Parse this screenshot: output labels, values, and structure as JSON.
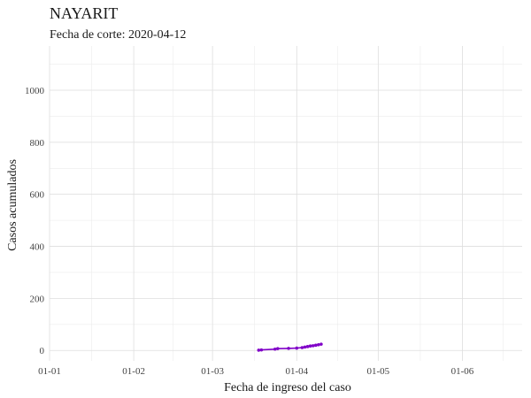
{
  "chart_data": {
    "type": "line",
    "title": "NAYARIT",
    "subtitle": "Fecha de corte: 2020-04-12",
    "xlabel": "Fecha de ingreso del caso",
    "ylabel": "Casos acumulados",
    "x_ticks": [
      "01-01",
      "01-02",
      "01-03",
      "01-04",
      "01-05",
      "01-06"
    ],
    "x_tick_dates": [
      "2020-01-01",
      "2020-02-01",
      "2020-03-01",
      "2020-04-01",
      "2020-05-01",
      "2020-06-01"
    ],
    "xlim": [
      "2020-01-01",
      "2020-06-23"
    ],
    "y_ticks": [
      0,
      200,
      400,
      600,
      800,
      1000
    ],
    "ylim": [
      -40,
      1170
    ],
    "grid": true,
    "series_color": "#8000c8",
    "x": [
      "2020-03-18",
      "2020-03-19",
      "2020-03-24",
      "2020-03-25",
      "2020-03-29",
      "2020-04-01",
      "2020-04-03",
      "2020-04-04",
      "2020-04-05",
      "2020-04-06",
      "2020-04-07",
      "2020-04-08",
      "2020-04-09",
      "2020-04-10"
    ],
    "y": [
      1,
      2,
      5,
      7,
      8,
      9,
      11,
      13,
      15,
      17,
      18,
      20,
      22,
      24
    ]
  }
}
